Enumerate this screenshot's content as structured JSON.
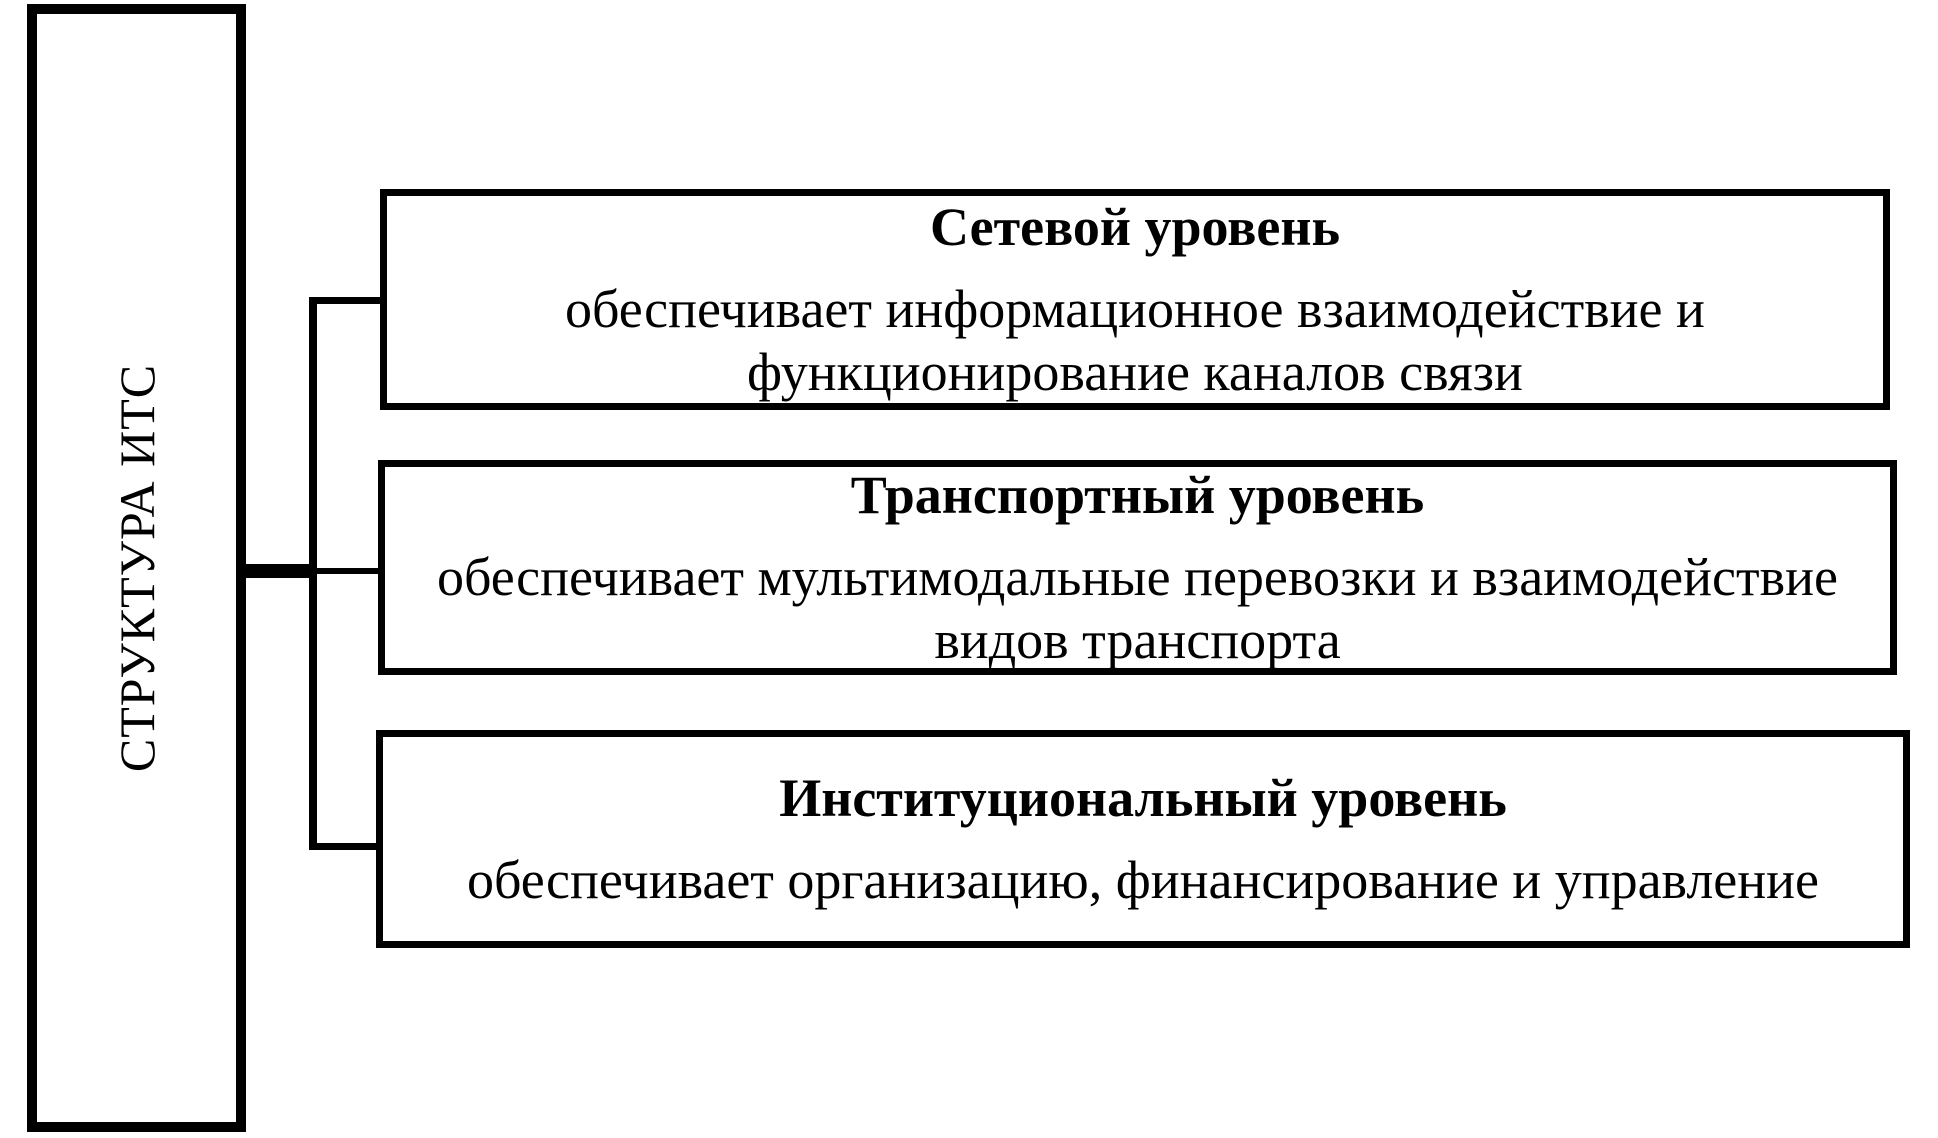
{
  "diagram": {
    "root_label": "СТРУКТУРА ИТС",
    "levels": [
      {
        "title": "Сетевой уровень",
        "description": "обеспечивает информационное взаимодействие и функционирование каналов связи"
      },
      {
        "title": "Транспортный уровень",
        "description": "обеспечивает мультимодальные перевозки и взаимодействие видов транспорта"
      },
      {
        "title": "Институциональный уровень",
        "description": "обеспечивает организацию, финансирование и управление"
      }
    ],
    "colors": {
      "line": "#000000",
      "text": "#000000",
      "background": "#ffffff"
    }
  }
}
